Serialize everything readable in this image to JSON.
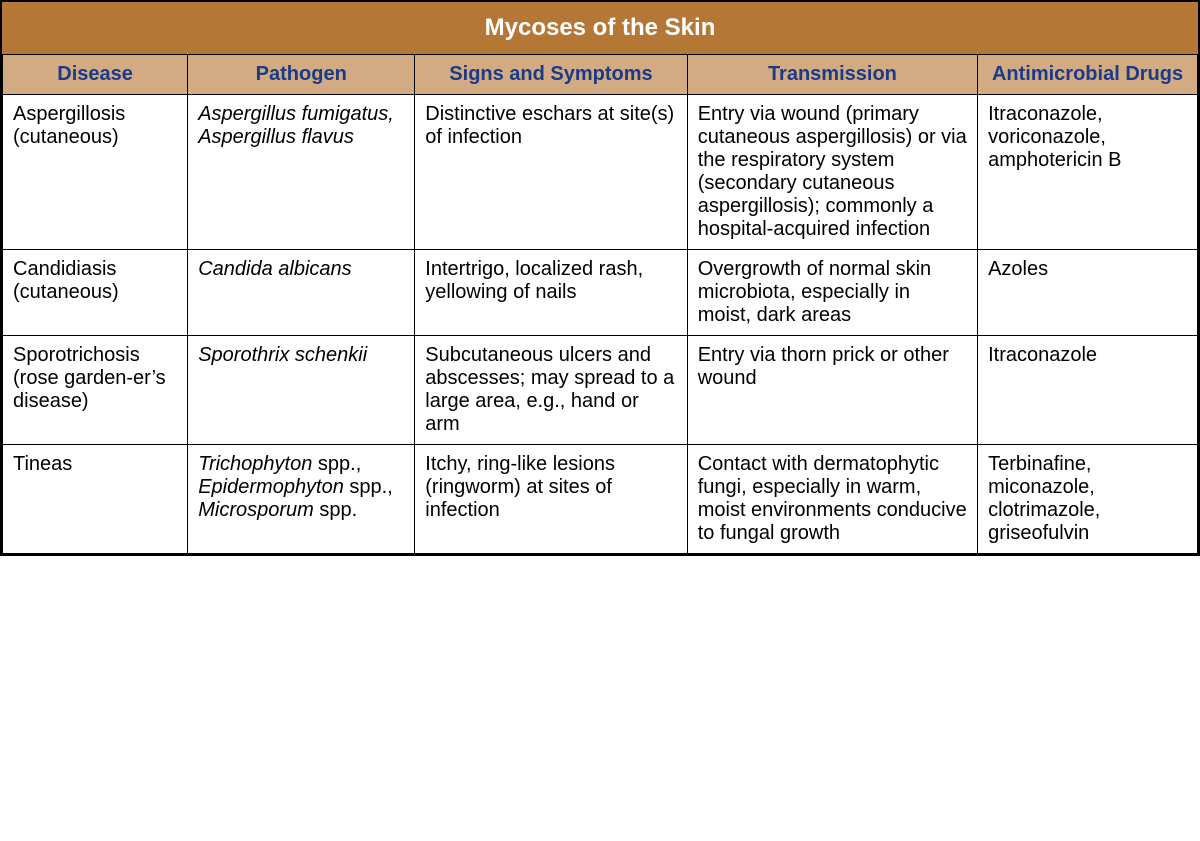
{
  "table": {
    "type": "table",
    "title": "Mycoses of the Skin",
    "title_bg": "#b57736",
    "title_color": "#ffffff",
    "title_fontsize": 24,
    "header_bg": "#d2ab82",
    "header_color": "#1b3a8a",
    "header_fontsize": 20,
    "body_bg": "#ffffff",
    "body_color": "#000000",
    "body_fontsize": 20,
    "border_color": "#000000",
    "columns": [
      {
        "label": "Disease",
        "width_pct": 15.5
      },
      {
        "label": "Pathogen",
        "width_pct": 19.0
      },
      {
        "label": "Signs and Symptoms",
        "width_pct": 22.8
      },
      {
        "label": "Transmission",
        "width_pct": 24.3
      },
      {
        "label": "Antimicrobial Drugs",
        "width_pct": 18.4
      }
    ],
    "rows": [
      {
        "disease": "Aspergillosis (cutaneous)",
        "pathogen_html": "<i>Aspergillus fumigatus, Aspergillus flavus</i>",
        "signs": "Distinctive eschars at site(s) of infection",
        "transmission": "Entry via wound (primary cutaneous aspergillosis) or via the respiratory system (secondary cutaneous aspergillosis); commonly a hospital-acquired infection",
        "drugs": "Itraconazole, voriconazole, amphotericin B"
      },
      {
        "disease": "Candidiasis (cutaneous)",
        "pathogen_html": "<i>Candida albicans</i>",
        "signs": "Intertrigo, localized rash, yellowing of nails",
        "transmission": "Overgrowth of normal skin microbiota, especially in moist, dark areas",
        "drugs": "Azoles"
      },
      {
        "disease": "Sporotrichosis (rose garden‑er’s disease)",
        "pathogen_html": "<i>Sporothrix schenkii</i>",
        "signs": "Subcutaneous ulcers and abscesses; may spread to a large area, e.g., hand or arm",
        "transmission": "Entry via thorn prick or other wound",
        "drugs": "Itraconazole"
      },
      {
        "disease": "Tineas",
        "pathogen_html": "<i>Trichophyton</i> spp., <i>Epidermophyton</i> spp., <i>Microsporum</i> spp.",
        "signs": "Itchy, ring-like lesions (ringworm) at sites of infection",
        "transmission": "Contact with dermatophytic fungi, especially in warm, moist environments conducive to fungal growth",
        "drugs": "Terbinafine, miconazole, clotrimazole, griseofulvin"
      }
    ]
  }
}
